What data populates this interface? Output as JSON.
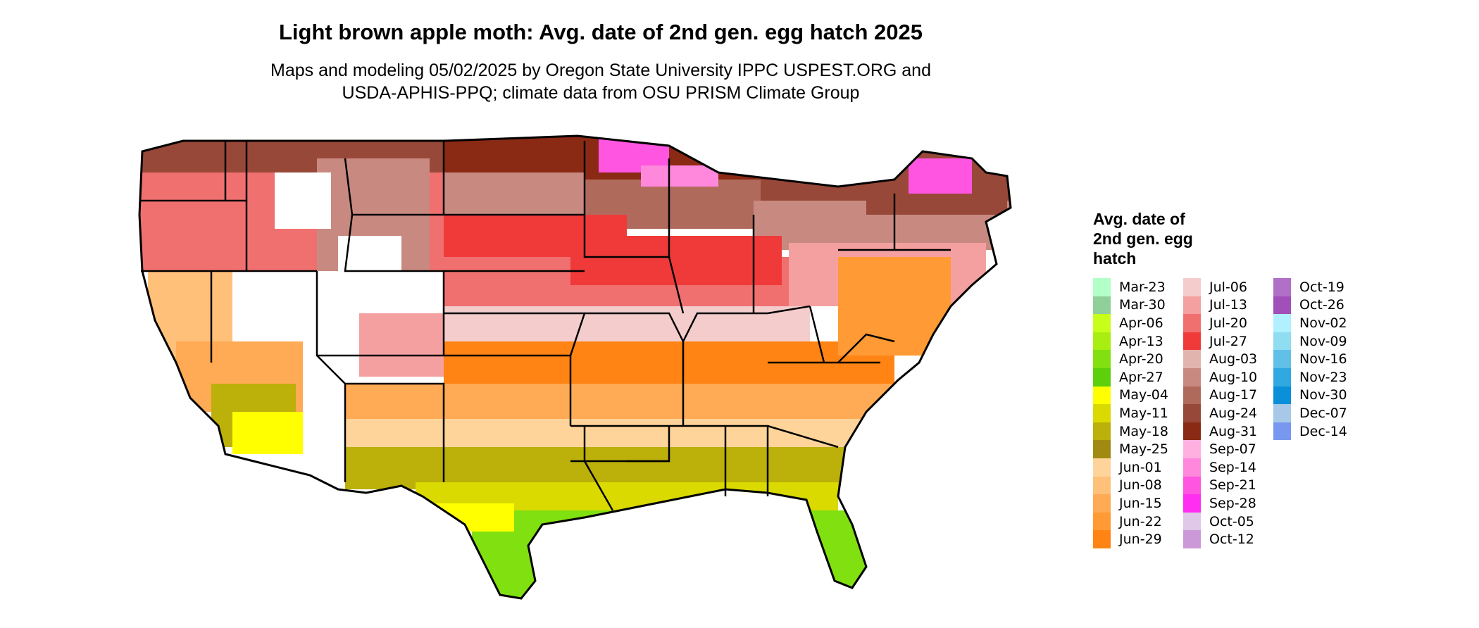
{
  "title": "Light brown apple moth: Avg. date of 2nd gen. egg hatch 2025",
  "subtitle_line1": "Maps and modeling 05/02/2025 by Oregon State University IPPC USPEST.ORG and",
  "subtitle_line2": "USDA-APHIS-PPQ; climate data from OSU PRISM Climate Group",
  "legend": {
    "title_lines": [
      "Avg. date of",
      "2nd gen. egg",
      "hatch"
    ],
    "items": [
      {
        "label": "Mar-23",
        "color": "#b3ffc8"
      },
      {
        "label": "Mar-30",
        "color": "#8fcf9a"
      },
      {
        "label": "Apr-06",
        "color": "#c8ff1a"
      },
      {
        "label": "Apr-13",
        "color": "#a8ee10"
      },
      {
        "label": "Apr-20",
        "color": "#80e010"
      },
      {
        "label": "Apr-27",
        "color": "#5cd00c"
      },
      {
        "label": "May-04",
        "color": "#ffff00"
      },
      {
        "label": "May-11",
        "color": "#dada00"
      },
      {
        "label": "May-18",
        "color": "#bcb00a"
      },
      {
        "label": "May-25",
        "color": "#a08a12"
      },
      {
        "label": "Jun-01",
        "color": "#ffd49a"
      },
      {
        "label": "Jun-08",
        "color": "#ffc07a"
      },
      {
        "label": "Jun-15",
        "color": "#ffaa55"
      },
      {
        "label": "Jun-22",
        "color": "#ff9a35"
      },
      {
        "label": "Jun-29",
        "color": "#ff8414"
      },
      {
        "label": "Jul-06",
        "color": "#f4cccc"
      },
      {
        "label": "Jul-13",
        "color": "#f4a0a0"
      },
      {
        "label": "Jul-20",
        "color": "#f07070"
      },
      {
        "label": "Jul-27",
        "color": "#f03a3a"
      },
      {
        "label": "Aug-03",
        "color": "#e2b4ae"
      },
      {
        "label": "Aug-10",
        "color": "#c88a80"
      },
      {
        "label": "Aug-17",
        "color": "#b06a5c"
      },
      {
        "label": "Aug-24",
        "color": "#984838"
      },
      {
        "label": "Aug-31",
        "color": "#8a2a14"
      },
      {
        "label": "Sep-07",
        "color": "#ffb0e0"
      },
      {
        "label": "Sep-14",
        "color": "#ff88dc"
      },
      {
        "label": "Sep-21",
        "color": "#ff55e0"
      },
      {
        "label": "Sep-28",
        "color": "#ff2ef0"
      },
      {
        "label": "Oct-05",
        "color": "#e0c8e8"
      },
      {
        "label": "Oct-12",
        "color": "#cc99d8"
      },
      {
        "label": "Oct-19",
        "color": "#b070c8"
      },
      {
        "label": "Oct-26",
        "color": "#a050b8"
      },
      {
        "label": "Nov-02",
        "color": "#b0f0ff"
      },
      {
        "label": "Nov-09",
        "color": "#90dcf0"
      },
      {
        "label": "Nov-16",
        "color": "#60c0e8"
      },
      {
        "label": "Nov-23",
        "color": "#30a8e0"
      },
      {
        "label": "Nov-30",
        "color": "#0a90d8"
      },
      {
        "label": "Dec-07",
        "color": "#a8c8e8"
      },
      {
        "label": "Dec-14",
        "color": "#7898f0"
      }
    ]
  }
}
